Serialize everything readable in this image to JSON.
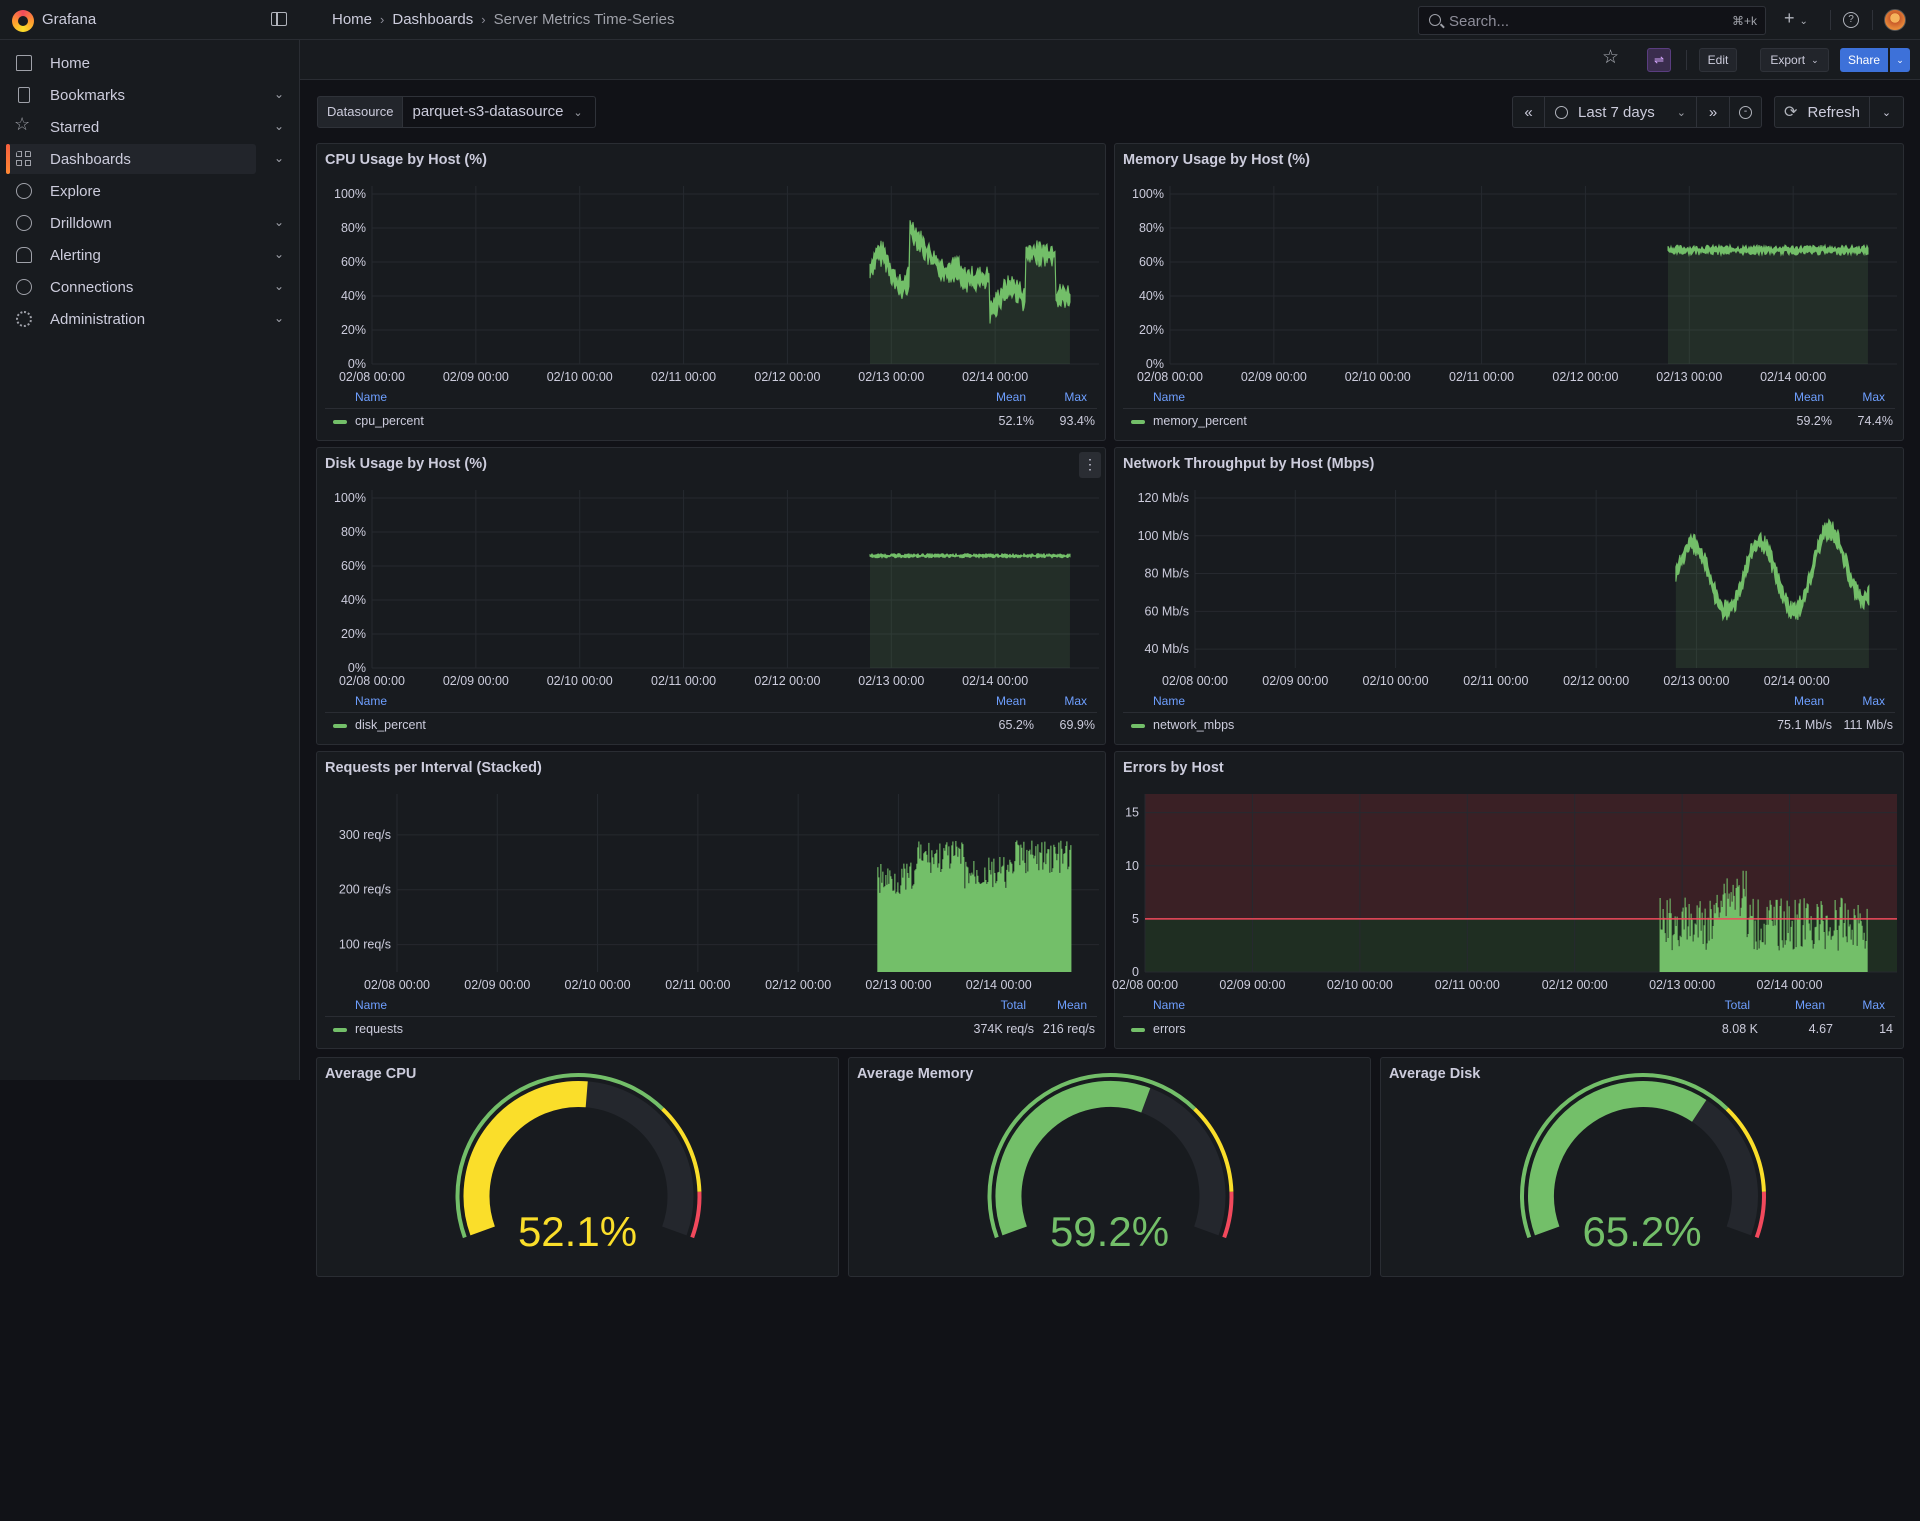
{
  "app": {
    "name": "Grafana"
  },
  "breadcrumbs": [
    "Home",
    "Dashboards",
    "Server Metrics Time-Series"
  ],
  "search": {
    "placeholder": "Search...",
    "shortcut": "⌘+k"
  },
  "sidebar": {
    "items": [
      {
        "label": "Home",
        "icon": "home-icon",
        "expandable": false
      },
      {
        "label": "Bookmarks",
        "icon": "bookmark-icon",
        "expandable": true
      },
      {
        "label": "Starred",
        "icon": "star-icon",
        "expandable": true
      },
      {
        "label": "Dashboards",
        "icon": "grid-icon",
        "expandable": true,
        "active": true
      },
      {
        "label": "Explore",
        "icon": "compass-icon",
        "expandable": false
      },
      {
        "label": "Drilldown",
        "icon": "drilldown-icon",
        "expandable": true
      },
      {
        "label": "Alerting",
        "icon": "bell-icon",
        "expandable": true
      },
      {
        "label": "Connections",
        "icon": "connections-icon",
        "expandable": true
      },
      {
        "label": "Administration",
        "icon": "gear-icon",
        "expandable": true
      }
    ]
  },
  "toolbar": {
    "edit_label": "Edit",
    "export_label": "Export",
    "share_label": "Share"
  },
  "variables": {
    "datasource_label": "Datasource",
    "datasource_value": "parquet-s3-datasource"
  },
  "timepicker": {
    "range_label": "Last 7 days",
    "refresh_label": "Refresh"
  },
  "colors": {
    "series": "#73bf69",
    "accent": "#3d71d9",
    "warn": "#fade2a",
    "crit": "#f2495c"
  },
  "x_ticks": [
    "02/08 00:00",
    "02/09 00:00",
    "02/10 00:00",
    "02/11 00:00",
    "02/12 00:00",
    "02/13 00:00",
    "02/14 00:00"
  ],
  "panels": {
    "cpu": {
      "title": "CPU Usage by Host (%)",
      "legend_cols": [
        "Name",
        "Mean",
        "Max"
      ],
      "series_name": "cpu_percent",
      "stats": [
        "52.1%",
        "93.4%"
      ],
      "y_ticks": [
        "100%",
        "80%",
        "60%",
        "40%",
        "20%",
        "0%"
      ]
    },
    "mem": {
      "title": "Memory Usage by Host (%)",
      "legend_cols": [
        "Name",
        "Mean",
        "Max"
      ],
      "series_name": "memory_percent",
      "stats": [
        "59.2%",
        "74.4%"
      ],
      "y_ticks": [
        "100%",
        "80%",
        "60%",
        "40%",
        "20%",
        "0%"
      ]
    },
    "disk": {
      "title": "Disk Usage by Host (%)",
      "legend_cols": [
        "Name",
        "Mean",
        "Max"
      ],
      "series_name": "disk_percent",
      "stats": [
        "65.2%",
        "69.9%"
      ],
      "y_ticks": [
        "100%",
        "80%",
        "60%",
        "40%",
        "20%",
        "0%"
      ]
    },
    "net": {
      "title": "Network Throughput by Host (Mbps)",
      "legend_cols": [
        "Name",
        "Mean",
        "Max"
      ],
      "series_name": "network_mbps",
      "stats": [
        "75.1 Mb/s",
        "111 Mb/s"
      ],
      "y_ticks": [
        "120 Mb/s",
        "100 Mb/s",
        "80 Mb/s",
        "60 Mb/s",
        "40 Mb/s"
      ]
    },
    "req": {
      "title": "Requests per Interval (Stacked)",
      "legend_cols": [
        "Name",
        "Total",
        "Mean"
      ],
      "series_name": "requests",
      "stats": [
        "374K req/s",
        "216 req/s"
      ],
      "y_ticks": [
        "300 req/s",
        "200 req/s",
        "100 req/s"
      ]
    },
    "err": {
      "title": "Errors by Host",
      "legend_cols": [
        "Name",
        "Total",
        "Mean",
        "Max"
      ],
      "series_name": "errors",
      "stats": [
        "8.08 K",
        "4.67",
        "14"
      ],
      "y_ticks": [
        "15",
        "10",
        "5",
        "0"
      ]
    }
  },
  "gauges": [
    {
      "title": "Average CPU",
      "display": "52.1%",
      "value": 52.1,
      "color": "#fade2a"
    },
    {
      "title": "Average Memory",
      "display": "59.2%",
      "value": 59.2,
      "color": "#73bf69"
    },
    {
      "title": "Average Disk",
      "display": "65.2%",
      "value": 65.2,
      "color": "#73bf69"
    }
  ],
  "chart_data": [
    {
      "type": "area",
      "title": "CPU Usage by Host (%)",
      "series": [
        {
          "name": "cpu_percent",
          "time_range": [
            "02/12 12:00",
            "02/14 15:00"
          ],
          "mean": 52.1,
          "max": 93.4
        }
      ],
      "ylim": [
        0,
        100
      ]
    },
    {
      "type": "area",
      "title": "Memory Usage by Host (%)",
      "series": [
        {
          "name": "memory_percent",
          "time_range": [
            "02/12 12:00",
            "02/14 15:00"
          ],
          "mean": 59.2,
          "max": 74.4
        }
      ],
      "ylim": [
        0,
        100
      ]
    },
    {
      "type": "area",
      "title": "Disk Usage by Host (%)",
      "series": [
        {
          "name": "disk_percent",
          "time_range": [
            "02/12 12:00",
            "02/14 15:00"
          ],
          "mean": 65.2,
          "max": 69.9
        }
      ],
      "ylim": [
        0,
        100
      ]
    },
    {
      "type": "area",
      "title": "Network Throughput by Host (Mbps)",
      "series": [
        {
          "name": "network_mbps",
          "time_range": [
            "02/12 12:00",
            "02/14 15:00"
          ],
          "mean": 75.1,
          "max": 111
        }
      ],
      "ylim": [
        30,
        120
      ]
    },
    {
      "type": "bar",
      "title": "Requests per Interval (Stacked)",
      "series": [
        {
          "name": "requests",
          "time_range": [
            "02/12 12:00",
            "02/14 15:00"
          ],
          "mean": 216
        }
      ],
      "ylim": [
        50,
        360
      ]
    },
    {
      "type": "bar",
      "title": "Errors by Host",
      "series": [
        {
          "name": "errors",
          "time_range": [
            "02/12 12:00",
            "02/14 15:00"
          ],
          "mean": 4.67,
          "max": 14
        }
      ],
      "ylim": [
        0,
        16
      ],
      "threshold": 5
    }
  ]
}
